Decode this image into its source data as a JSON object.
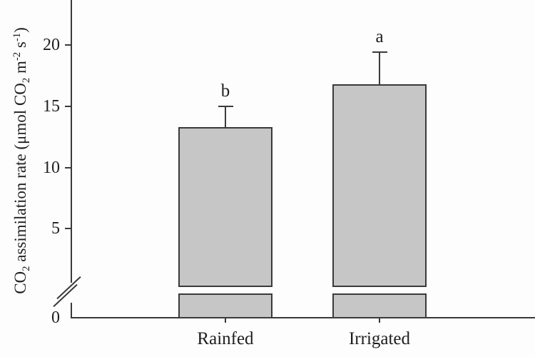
{
  "colors": {
    "background": "#fdfdfd",
    "axis_line": "#3a3a3a",
    "bar_fill": "#c6c6c6",
    "bar_edge": "#3a3a3a",
    "text": "#1e1e1e"
  },
  "ylabel": {
    "p1": "CO",
    "sub1": "2",
    "p2": " assimilation rate (μmol CO",
    "sub2": "2",
    "p3": " m",
    "sup1": "-2",
    "p4": " s",
    "sup2": "-1",
    "p5": ")"
  },
  "chart_data": {
    "type": "bar",
    "title": "",
    "categories": [
      "Rainfed",
      "Irrigated"
    ],
    "values": [
      13.3,
      16.8
    ],
    "error_up": [
      1.7,
      2.6
    ],
    "sig_letters": [
      "b",
      "a"
    ],
    "ylabel": "CO2 assimilation rate (μmol CO2 m-2 s-1)",
    "xlabel": "",
    "yticks": [
      0,
      5,
      10,
      15,
      20
    ],
    "ylim": [
      0,
      23.7
    ],
    "y_axis_break": {
      "present": true,
      "between": [
        0,
        1
      ]
    },
    "legend_position": "none",
    "grid": false
  }
}
